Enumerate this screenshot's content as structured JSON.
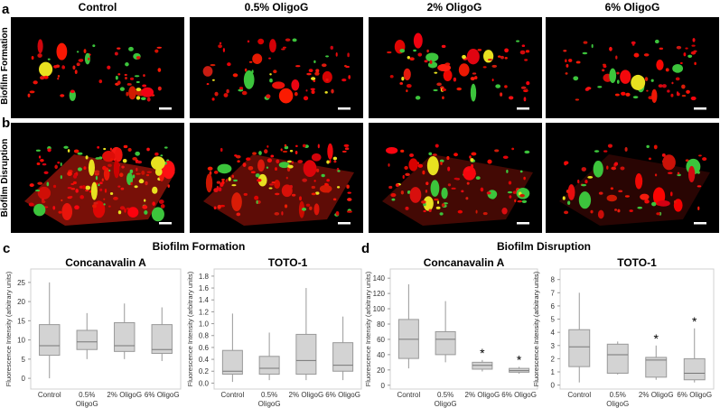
{
  "figure": {
    "panel_labels": [
      "a",
      "b",
      "c",
      "d"
    ],
    "image_columns": [
      "Control",
      "0.5% OligoG",
      "2% OligoG",
      "6% OligoG"
    ],
    "image_rows": [
      "Biofilm Formation",
      "Biofilm Disruption"
    ],
    "groups": [
      "Biofilm Formation",
      "Biofilm Disruption"
    ]
  },
  "chart_data": [
    {
      "type": "box",
      "title": "Concanavalin A",
      "y_label": "Fluorescence Intensity (arbitrary units)",
      "categories": [
        "Control",
        "0.5% OligoG",
        "2% OligoG",
        "6% OligoG"
      ],
      "boxes": [
        {
          "min": 0,
          "q1": 6,
          "median": 8.5,
          "q3": 14,
          "max": 25
        },
        {
          "min": 5,
          "q1": 7.5,
          "median": 9.5,
          "q3": 12.5,
          "max": 17
        },
        {
          "min": 5,
          "q1": 7,
          "median": 8.5,
          "q3": 14.5,
          "max": 19.5
        },
        {
          "min": 4.5,
          "q1": 6.5,
          "median": 7.5,
          "q3": 14,
          "max": 18.5
        }
      ],
      "significance": [
        null,
        null,
        null,
        null
      ],
      "color": "#d3d3d3",
      "ylim": [
        -2.8,
        28.5
      ],
      "yticks": [
        0,
        5,
        10,
        15,
        20,
        25
      ]
    },
    {
      "type": "box",
      "title": "TOTO-1",
      "y_label": "Fluorescence Intensity (arbitrary units)",
      "categories": [
        "Control",
        "0.5% OligoG",
        "2% OligoG",
        "6% OligoG"
      ],
      "boxes": [
        {
          "min": 0.02,
          "q1": 0.15,
          "median": 0.2,
          "q3": 0.55,
          "max": 1.17
        },
        {
          "min": 0.05,
          "q1": 0.15,
          "median": 0.25,
          "q3": 0.45,
          "max": 0.85
        },
        {
          "min": 0.05,
          "q1": 0.15,
          "median": 0.38,
          "q3": 0.82,
          "max": 1.6
        },
        {
          "min": 0.05,
          "q1": 0.2,
          "median": 0.3,
          "q3": 0.68,
          "max": 1.12
        }
      ],
      "significance": [
        null,
        null,
        null,
        null
      ],
      "color": "#d3d3d3",
      "ylim": [
        -0.1,
        1.92
      ],
      "yticks": [
        {
          "value": 0,
          "label": "0.0"
        },
        0.2,
        0.4,
        0.6,
        0.8,
        {
          "value": 1,
          "label": "1.0"
        },
        1.2,
        1.4,
        1.6,
        1.8
      ]
    },
    {
      "type": "box",
      "title": "Concanavalin A",
      "y_label": "Fluorescence Intensity (arbitrary units)",
      "categories": [
        "Control",
        "0.5% OligoG",
        "2% OligoG",
        "6% OligoG"
      ],
      "boxes": [
        {
          "min": 22,
          "q1": 35,
          "median": 60,
          "q3": 86,
          "max": 132
        },
        {
          "min": 30,
          "q1": 40,
          "median": 60,
          "q3": 70,
          "max": 110
        },
        {
          "min": 18,
          "q1": 21,
          "median": 26,
          "q3": 30,
          "max": 33
        },
        {
          "min": 15,
          "q1": 17,
          "median": 19,
          "q3": 22,
          "max": 24
        }
      ],
      "significance": [
        null,
        null,
        "*",
        "*"
      ],
      "color": "#d3d3d3",
      "ylim": [
        -5,
        152
      ],
      "yticks": [
        0,
        20,
        40,
        60,
        80,
        100,
        120,
        140
      ]
    },
    {
      "type": "box",
      "title": "TOTO-1",
      "y_label": "Fluorescence Intensity (arbitrary units)",
      "categories": [
        "Control",
        "0.5% OligoG",
        "2% OligoG",
        "6% OligoG"
      ],
      "boxes": [
        {
          "min": 0.2,
          "q1": 1.4,
          "median": 2.9,
          "q3": 4.2,
          "max": 7
        },
        {
          "min": 0.8,
          "q1": 0.9,
          "median": 2.3,
          "q3": 3.1,
          "max": 3.3
        },
        {
          "min": 0.4,
          "q1": 0.6,
          "median": 1.9,
          "q3": 2.1,
          "max": 3.0
        },
        {
          "min": 0.2,
          "q1": 0.4,
          "median": 0.9,
          "q3": 2.0,
          "max": 4.3
        }
      ],
      "significance": [
        null,
        null,
        "*",
        "*"
      ],
      "color": "#d3d3d3",
      "ylim": [
        -0.3,
        8.8
      ],
      "yticks": [
        0,
        1,
        2,
        3,
        4,
        5,
        6,
        7,
        8
      ]
    }
  ]
}
